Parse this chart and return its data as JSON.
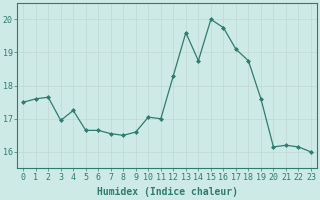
{
  "x": [
    0,
    1,
    2,
    3,
    4,
    5,
    6,
    7,
    8,
    9,
    10,
    11,
    12,
    13,
    14,
    15,
    16,
    17,
    18,
    19,
    20,
    21,
    22,
    23
  ],
  "y": [
    17.5,
    17.6,
    17.65,
    16.95,
    17.25,
    16.65,
    16.65,
    16.55,
    16.5,
    16.6,
    17.05,
    17.0,
    18.3,
    19.6,
    18.75,
    20.0,
    19.75,
    19.1,
    18.75,
    17.6,
    16.15,
    16.2,
    16.15,
    16.0
  ],
  "line_color": "#2d7d6e",
  "marker": "D",
  "marker_size": 2.0,
  "bg_color": "#ceeae6",
  "grid_color": "#c0d8d4",
  "axis_color": "#2d7d6e",
  "tick_color": "#2d7d6e",
  "xlabel": "Humidex (Indice chaleur)",
  "ylim": [
    15.5,
    20.5
  ],
  "xlim": [
    -0.5,
    23.5
  ],
  "yticks": [
    16,
    17,
    18,
    19,
    20
  ],
  "xticks": [
    0,
    1,
    2,
    3,
    4,
    5,
    6,
    7,
    8,
    9,
    10,
    11,
    12,
    13,
    14,
    15,
    16,
    17,
    18,
    19,
    20,
    21,
    22,
    23
  ],
  "font_size_xlabel": 7.0,
  "font_size_ticks": 6.0
}
